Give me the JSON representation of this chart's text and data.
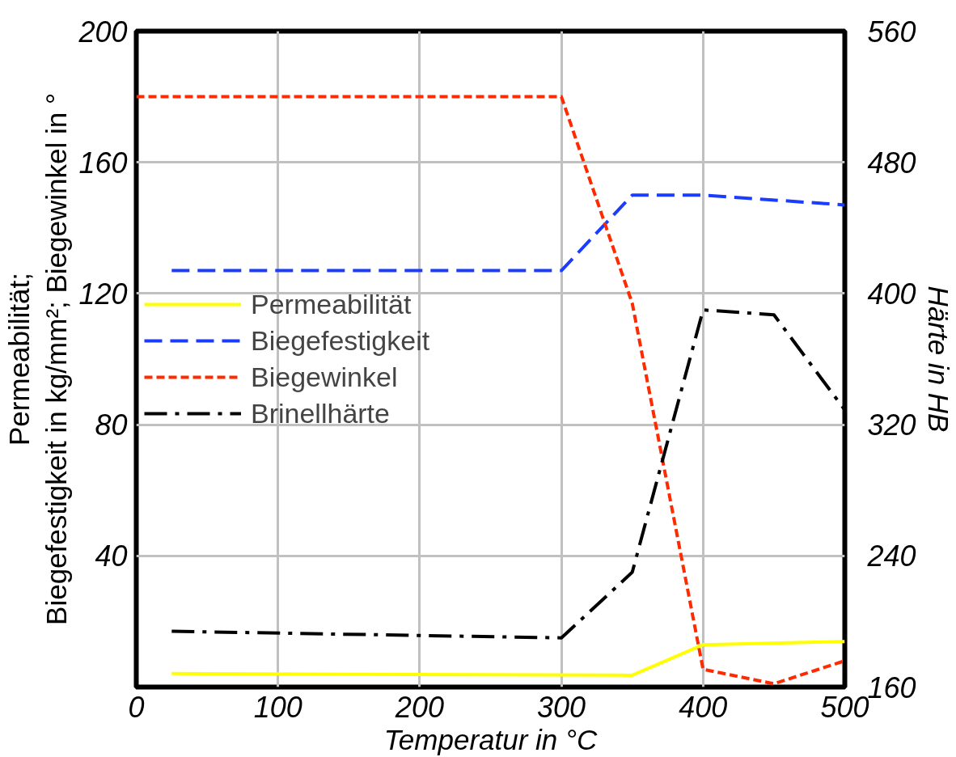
{
  "chart_data": {
    "type": "line",
    "xlabel": "Temperatur in °C",
    "ylabel": "Permeabilität;\nBiegefestigkeit in kg/mm²; Biegewinkel in °",
    "y2label": "Härte in HB",
    "xlim": [
      0,
      500
    ],
    "xticks": [
      0,
      100,
      200,
      300,
      400,
      500
    ],
    "ylim": [
      0,
      200
    ],
    "yticks": [
      40,
      80,
      120,
      160,
      200
    ],
    "y2lim": [
      160,
      560
    ],
    "y2ticks": [
      160,
      240,
      320,
      400,
      480,
      560
    ],
    "grid": true,
    "legend": "center left",
    "marker": "none",
    "series": [
      {
        "name": "Permeabilität",
        "color": "#ffff00",
        "line_style": "solid",
        "x": [
          25,
          350,
          400,
          500
        ],
        "values": [
          4.1,
          3.6,
          12.9,
          13.9
        ]
      },
      {
        "name": "Biegefestigkeit",
        "color": "#1a3cff",
        "line_style": "dashed",
        "x": [
          25,
          300,
          350,
          400,
          500
        ],
        "values": [
          127,
          127,
          150,
          150,
          147
        ]
      },
      {
        "name": "Biegewinkel",
        "color": "#ff2a00",
        "line_style": "dotted",
        "x": [
          0,
          300,
          350,
          400,
          450,
          500
        ],
        "values": [
          180,
          180,
          117,
          5.4,
          1,
          8
        ]
      },
      {
        "name": "Brinellhärte",
        "color": "#000000",
        "line_style": "dashdot",
        "axis": "y2",
        "x": [
          25,
          300,
          350,
          400,
          450,
          500
        ],
        "values": [
          194,
          190,
          230,
          390,
          387,
          329
        ]
      }
    ]
  }
}
